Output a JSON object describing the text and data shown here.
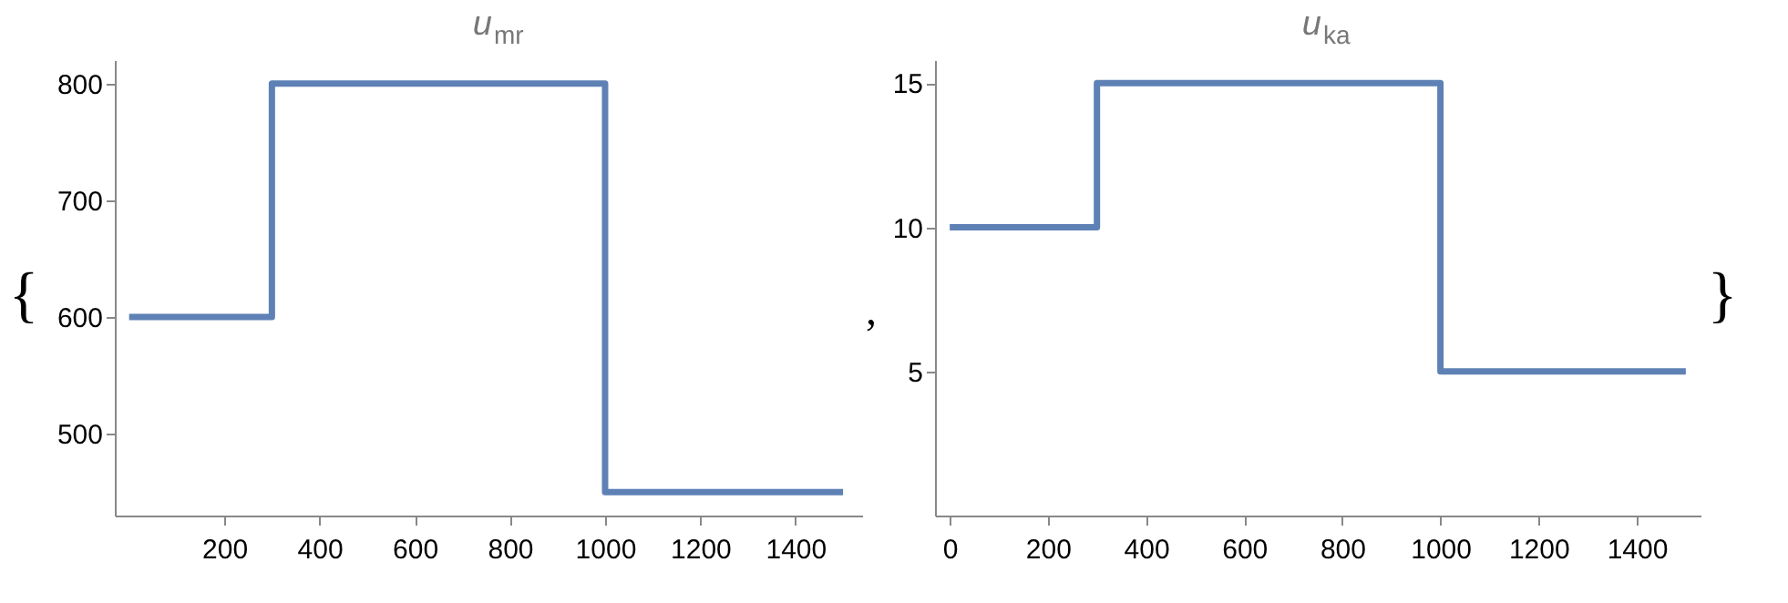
{
  "chart_data": [
    {
      "type": "step",
      "title": "u$_{mr}$",
      "x": [
        0,
        300,
        1000,
        1500
      ],
      "values": [
        600,
        800,
        450,
        450
      ],
      "color": "#5e81b5",
      "xlim": [
        -30,
        1540
      ],
      "ylim": [
        430,
        820
      ],
      "xticks": [
        200,
        400,
        600,
        800,
        1000,
        1200,
        1400
      ],
      "yticks": [
        500,
        600,
        700,
        800
      ],
      "grid": false,
      "annotations": [
        "{",
        ","
      ]
    },
    {
      "type": "step",
      "title": "u$_{ka}$",
      "x": [
        0,
        300,
        1000,
        1500
      ],
      "values": [
        10,
        15,
        5,
        5
      ],
      "color": "#5e81b5",
      "xlim": [
        -30,
        1530
      ],
      "ylim": [
        0,
        15.8
      ],
      "xticks": [
        0,
        200,
        400,
        600,
        800,
        1000,
        1200,
        1400
      ],
      "yticks": [
        5,
        10,
        15
      ],
      "grid": false,
      "annotations": [
        "}"
      ]
    }
  ]
}
